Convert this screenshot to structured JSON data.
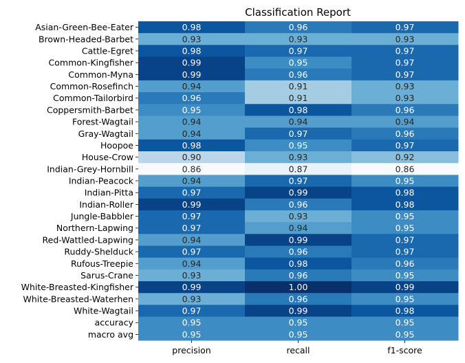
{
  "chart_data": {
    "type": "heatmap",
    "title": "Classification Report",
    "columns": [
      "precision",
      "recall",
      "f1-score"
    ],
    "rows": [
      "Asian-Green-Bee-Eater",
      "Brown-Headed-Barbet",
      "Cattle-Egret",
      "Common-Kingfisher",
      "Common-Myna",
      "Common-Rosefinch",
      "Common-Tailorbird",
      "Coppersmith-Barbet",
      "Forest-Wagtail",
      "Gray-Wagtail",
      "Hoopoe",
      "House-Crow",
      "Indian-Grey-Hornbill",
      "Indian-Peacock",
      "Indian-Pitta",
      "Indian-Roller",
      "Jungle-Babbler",
      "Northern-Lapwing",
      "Red-Wattled-Lapwing",
      "Ruddy-Shelduck",
      "Rufous-Treepie",
      "Sarus-Crane",
      "White-Breasted-Kingfisher",
      "White-Breasted-Waterhen",
      "White-Wagtail",
      "accuracy",
      "macro avg"
    ],
    "values": [
      [
        0.98,
        0.96,
        0.97
      ],
      [
        0.93,
        0.93,
        0.93
      ],
      [
        0.98,
        0.97,
        0.97
      ],
      [
        0.99,
        0.95,
        0.97
      ],
      [
        0.99,
        0.96,
        0.97
      ],
      [
        0.94,
        0.91,
        0.93
      ],
      [
        0.96,
        0.91,
        0.93
      ],
      [
        0.95,
        0.98,
        0.96
      ],
      [
        0.94,
        0.94,
        0.94
      ],
      [
        0.94,
        0.97,
        0.96
      ],
      [
        0.98,
        0.95,
        0.97
      ],
      [
        0.9,
        0.93,
        0.92
      ],
      [
        0.86,
        0.87,
        0.86
      ],
      [
        0.94,
        0.97,
        0.95
      ],
      [
        0.97,
        0.99,
        0.98
      ],
      [
        0.99,
        0.96,
        0.98
      ],
      [
        0.97,
        0.93,
        0.95
      ],
      [
        0.97,
        0.94,
        0.95
      ],
      [
        0.94,
        0.99,
        0.97
      ],
      [
        0.97,
        0.96,
        0.97
      ],
      [
        0.94,
        0.98,
        0.96
      ],
      [
        0.93,
        0.96,
        0.95
      ],
      [
        0.99,
        1.0,
        0.99
      ],
      [
        0.93,
        0.96,
        0.95
      ],
      [
        0.97,
        0.99,
        0.98
      ],
      [
        0.95,
        0.95,
        0.95
      ],
      [
        0.95,
        0.95,
        0.95
      ]
    ],
    "colormap": "Blues",
    "value_format": "2 decimals",
    "colorbar": false
  }
}
